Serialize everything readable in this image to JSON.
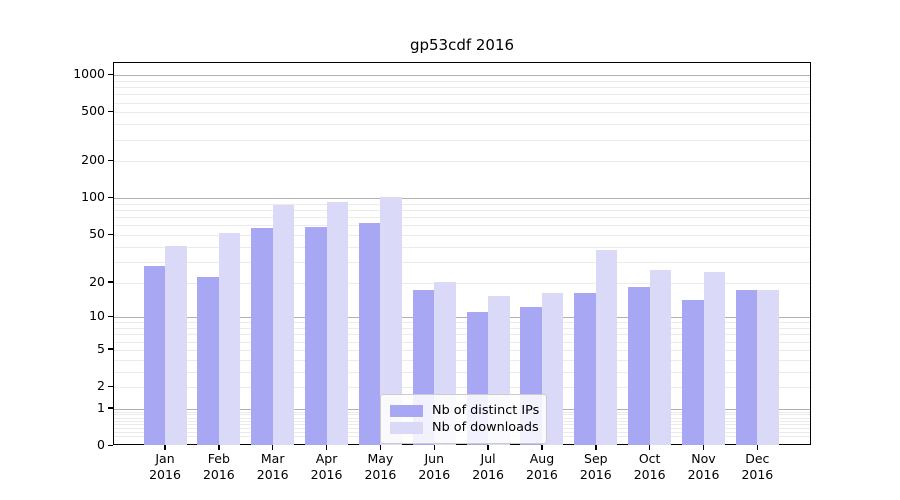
{
  "title": "gp53cdf 2016",
  "chart_data": {
    "type": "bar",
    "title": "gp53cdf 2016",
    "categories": [
      "Jan",
      "Feb",
      "Mar",
      "Apr",
      "May",
      "Jun",
      "Jul",
      "Aug",
      "Sep",
      "Oct",
      "Nov",
      "Dec"
    ],
    "category_year": "2016",
    "series": [
      {
        "name": "Nb of distinct IPs",
        "color": "#a7a7f3",
        "values": [
          27,
          22,
          56,
          57,
          62,
          17,
          11,
          12,
          16,
          18,
          14,
          17
        ]
      },
      {
        "name": "Nb of downloads",
        "color": "#dadaf8",
        "values": [
          40,
          51,
          87,
          92,
          100,
          20,
          15,
          16,
          37,
          25,
          24,
          17
        ]
      }
    ],
    "yscale": "log1p",
    "ylim": [
      0,
      1259
    ],
    "yticks": [
      0,
      1,
      2,
      5,
      10,
      20,
      50,
      100,
      200,
      500,
      1000
    ],
    "grid": {
      "major_color": "#b0b0b0",
      "minor_color": "#ebebeb"
    },
    "legend_position": "lower center"
  }
}
